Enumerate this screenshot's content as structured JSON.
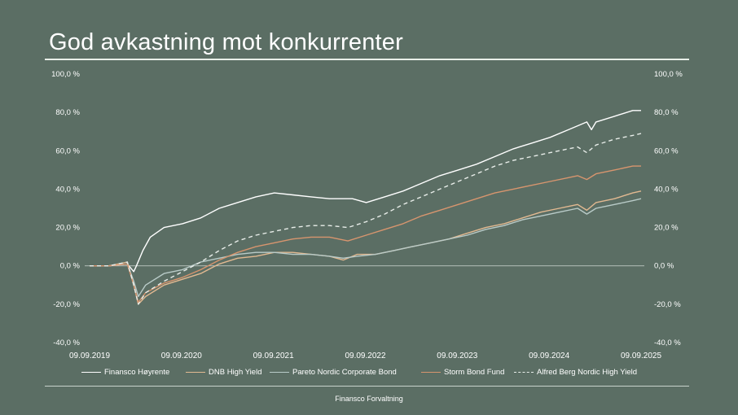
{
  "title": "God avkastning mot konkurrenter",
  "footer": "Finansco Forvaltning",
  "chart_data": {
    "type": "line",
    "x_ticks": [
      "09.09.2019",
      "09.09.2020",
      "09.09.2021",
      "09.09.2022",
      "09.09.2023",
      "09.09.2024",
      "09.09.2025"
    ],
    "y_ticks": [
      "100,0 %",
      "80,0 %",
      "60,0 %",
      "40,0 %",
      "20,0 %",
      "0,0 %",
      "-20,0 %",
      "-40,0 %"
    ],
    "ylim": [
      -40,
      100
    ],
    "xlim": [
      2019.69,
      2025.69
    ],
    "grid": false,
    "legend_position": "bottom",
    "series": [
      {
        "name": "Finansco Høyrente",
        "color": "#ffffff",
        "dash": "solid",
        "points": [
          [
            2019.69,
            0
          ],
          [
            2019.9,
            0
          ],
          [
            2020.1,
            1
          ],
          [
            2020.17,
            -3
          ],
          [
            2020.2,
            0
          ],
          [
            2020.27,
            8
          ],
          [
            2020.35,
            15
          ],
          [
            2020.5,
            20
          ],
          [
            2020.7,
            22
          ],
          [
            2020.9,
            25
          ],
          [
            2021.1,
            30
          ],
          [
            2021.3,
            33
          ],
          [
            2021.5,
            36
          ],
          [
            2021.7,
            38
          ],
          [
            2021.9,
            37
          ],
          [
            2022.1,
            36
          ],
          [
            2022.3,
            35
          ],
          [
            2022.55,
            35
          ],
          [
            2022.7,
            33
          ],
          [
            2022.9,
            36
          ],
          [
            2023.1,
            39
          ],
          [
            2023.3,
            43
          ],
          [
            2023.5,
            47
          ],
          [
            2023.7,
            50
          ],
          [
            2023.9,
            53
          ],
          [
            2024.1,
            57
          ],
          [
            2024.3,
            61
          ],
          [
            2024.5,
            64
          ],
          [
            2024.7,
            67
          ],
          [
            2024.9,
            71
          ],
          [
            2025.1,
            75
          ],
          [
            2025.15,
            71
          ],
          [
            2025.2,
            75
          ],
          [
            2025.4,
            78
          ],
          [
            2025.6,
            81
          ],
          [
            2025.69,
            81
          ]
        ]
      },
      {
        "name": "DNB High Yield",
        "color": "#e2b991",
        "dash": "solid",
        "points": [
          [
            2019.69,
            0
          ],
          [
            2019.9,
            0
          ],
          [
            2020.1,
            2
          ],
          [
            2020.17,
            -10
          ],
          [
            2020.22,
            -20
          ],
          [
            2020.3,
            -16
          ],
          [
            2020.5,
            -10
          ],
          [
            2020.7,
            -7
          ],
          [
            2020.9,
            -4
          ],
          [
            2021.1,
            1
          ],
          [
            2021.3,
            4
          ],
          [
            2021.5,
            5
          ],
          [
            2021.7,
            7
          ],
          [
            2021.9,
            7
          ],
          [
            2022.1,
            6
          ],
          [
            2022.3,
            5
          ],
          [
            2022.45,
            3
          ],
          [
            2022.6,
            6
          ],
          [
            2022.8,
            6
          ],
          [
            2023.0,
            8
          ],
          [
            2023.2,
            10
          ],
          [
            2023.4,
            12
          ],
          [
            2023.6,
            14
          ],
          [
            2023.8,
            17
          ],
          [
            2024.0,
            20
          ],
          [
            2024.2,
            22
          ],
          [
            2024.4,
            25
          ],
          [
            2024.6,
            28
          ],
          [
            2024.8,
            30
          ],
          [
            2025.0,
            32
          ],
          [
            2025.1,
            29
          ],
          [
            2025.2,
            33
          ],
          [
            2025.4,
            35
          ],
          [
            2025.6,
            38
          ],
          [
            2025.69,
            39
          ]
        ]
      },
      {
        "name": "Pareto Nordic Corporate Bond",
        "color": "#b9cbc8",
        "dash": "solid",
        "points": [
          [
            2019.69,
            0
          ],
          [
            2019.9,
            0
          ],
          [
            2020.1,
            1
          ],
          [
            2020.17,
            -8
          ],
          [
            2020.22,
            -16
          ],
          [
            2020.3,
            -10
          ],
          [
            2020.5,
            -4
          ],
          [
            2020.7,
            -2
          ],
          [
            2020.9,
            2
          ],
          [
            2021.1,
            4
          ],
          [
            2021.3,
            6
          ],
          [
            2021.5,
            7
          ],
          [
            2021.7,
            7
          ],
          [
            2021.9,
            6
          ],
          [
            2022.1,
            6
          ],
          [
            2022.3,
            5
          ],
          [
            2022.45,
            4
          ],
          [
            2022.6,
            5
          ],
          [
            2022.8,
            6
          ],
          [
            2023.0,
            8
          ],
          [
            2023.2,
            10
          ],
          [
            2023.4,
            12
          ],
          [
            2023.6,
            14
          ],
          [
            2023.8,
            16
          ],
          [
            2024.0,
            19
          ],
          [
            2024.2,
            21
          ],
          [
            2024.4,
            24
          ],
          [
            2024.6,
            26
          ],
          [
            2024.8,
            28
          ],
          [
            2025.0,
            30
          ],
          [
            2025.1,
            27
          ],
          [
            2025.2,
            30
          ],
          [
            2025.4,
            32
          ],
          [
            2025.6,
            34
          ],
          [
            2025.69,
            35
          ]
        ]
      },
      {
        "name": "Storm Bond Fund",
        "color": "#d7956e",
        "dash": "solid",
        "points": [
          [
            2019.69,
            0
          ],
          [
            2019.9,
            0
          ],
          [
            2020.1,
            1
          ],
          [
            2020.17,
            -10
          ],
          [
            2020.22,
            -19
          ],
          [
            2020.3,
            -14
          ],
          [
            2020.5,
            -9
          ],
          [
            2020.7,
            -6
          ],
          [
            2020.9,
            -2
          ],
          [
            2021.1,
            3
          ],
          [
            2021.3,
            7
          ],
          [
            2021.5,
            10
          ],
          [
            2021.7,
            12
          ],
          [
            2021.9,
            14
          ],
          [
            2022.1,
            15
          ],
          [
            2022.3,
            15
          ],
          [
            2022.5,
            13
          ],
          [
            2022.7,
            16
          ],
          [
            2022.9,
            19
          ],
          [
            2023.1,
            22
          ],
          [
            2023.3,
            26
          ],
          [
            2023.5,
            29
          ],
          [
            2023.7,
            32
          ],
          [
            2023.9,
            35
          ],
          [
            2024.1,
            38
          ],
          [
            2024.3,
            40
          ],
          [
            2024.5,
            42
          ],
          [
            2024.7,
            44
          ],
          [
            2024.9,
            46
          ],
          [
            2025.0,
            47
          ],
          [
            2025.1,
            45
          ],
          [
            2025.2,
            48
          ],
          [
            2025.4,
            50
          ],
          [
            2025.6,
            52
          ],
          [
            2025.69,
            52
          ]
        ]
      },
      {
        "name": "Alfred Berg Nordic High Yield",
        "color": "#e8ede9",
        "dash": "dashed",
        "points": [
          [
            2019.69,
            0
          ],
          [
            2019.9,
            0
          ],
          [
            2020.1,
            2
          ],
          [
            2020.17,
            -10
          ],
          [
            2020.22,
            -20
          ],
          [
            2020.3,
            -14
          ],
          [
            2020.5,
            -8
          ],
          [
            2020.7,
            -3
          ],
          [
            2020.9,
            2
          ],
          [
            2021.1,
            8
          ],
          [
            2021.3,
            13
          ],
          [
            2021.5,
            16
          ],
          [
            2021.7,
            18
          ],
          [
            2021.9,
            20
          ],
          [
            2022.1,
            21
          ],
          [
            2022.3,
            21
          ],
          [
            2022.5,
            20
          ],
          [
            2022.7,
            23
          ],
          [
            2022.9,
            27
          ],
          [
            2023.1,
            32
          ],
          [
            2023.3,
            36
          ],
          [
            2023.5,
            40
          ],
          [
            2023.7,
            44
          ],
          [
            2023.9,
            48
          ],
          [
            2024.1,
            52
          ],
          [
            2024.3,
            55
          ],
          [
            2024.5,
            57
          ],
          [
            2024.7,
            59
          ],
          [
            2024.9,
            61
          ],
          [
            2025.0,
            62
          ],
          [
            2025.1,
            59
          ],
          [
            2025.2,
            63
          ],
          [
            2025.4,
            66
          ],
          [
            2025.6,
            68
          ],
          [
            2025.69,
            69
          ]
        ]
      }
    ]
  }
}
